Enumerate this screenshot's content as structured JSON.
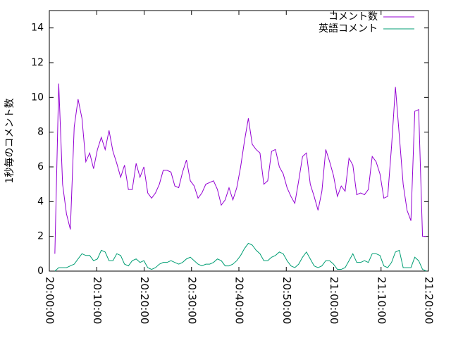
{
  "chart_data": {
    "type": "line",
    "y_label": "1秒毎のコメント数",
    "xlim": [
      "20:00:00",
      "21:20:00"
    ],
    "xticks": [
      "20:00:00",
      "20:10:00",
      "20:20:00",
      "20:30:00",
      "20:40:00",
      "20:50:00",
      "21:00:00",
      "21:10:00",
      "21:20:00"
    ],
    "ylim": [
      0,
      15
    ],
    "yticks": [
      0,
      2,
      4,
      6,
      8,
      10,
      12,
      14
    ],
    "legend": "top-right",
    "x": [
      "20:01:10",
      "20:01:59",
      "20:02:48",
      "20:03:37",
      "20:04:26",
      "20:05:15",
      "20:06:04",
      "20:06:53",
      "20:07:42",
      "20:08:31",
      "20:09:20",
      "20:10:09",
      "20:10:58",
      "20:11:47",
      "20:12:36",
      "20:13:25",
      "20:14:14",
      "20:15:03",
      "20:15:52",
      "20:16:41",
      "20:17:30",
      "20:18:19",
      "20:19:08",
      "20:19:57",
      "20:20:46",
      "20:21:35",
      "20:22:24",
      "20:23:13",
      "20:24:02",
      "20:24:51",
      "20:25:40",
      "20:26:29",
      "20:27:18",
      "20:28:07",
      "20:28:56",
      "20:29:45",
      "20:30:34",
      "20:31:23",
      "20:32:12",
      "20:33:01",
      "20:33:50",
      "20:34:39",
      "20:35:28",
      "20:36:17",
      "20:37:06",
      "20:37:55",
      "20:38:44",
      "20:39:33",
      "20:40:22",
      "20:41:11",
      "20:42:00",
      "20:42:49",
      "20:43:38",
      "20:44:27",
      "20:45:16",
      "20:46:05",
      "20:46:54",
      "20:47:43",
      "20:48:32",
      "20:49:21",
      "20:50:10",
      "20:50:59",
      "20:51:48",
      "20:52:37",
      "20:53:26",
      "20:54:15",
      "20:55:04",
      "20:55:53",
      "20:56:42",
      "20:57:31",
      "20:58:20",
      "20:59:09",
      "20:59:58",
      "21:00:47",
      "21:01:36",
      "21:02:25",
      "21:03:14",
      "21:04:03",
      "21:04:52",
      "21:05:41",
      "21:06:30",
      "21:07:19",
      "21:08:08",
      "21:08:57",
      "21:09:46",
      "21:10:35",
      "21:11:24",
      "21:12:13",
      "21:13:02",
      "21:13:51",
      "21:14:40",
      "21:15:29",
      "21:16:18",
      "21:17:07",
      "21:17:56",
      "21:18:45",
      "21:19:34"
    ],
    "series": [
      {
        "name": "コメント数",
        "color": "#9400d3",
        "values": [
          1.0,
          10.8,
          5.0,
          3.3,
          2.4,
          8.3,
          9.9,
          8.8,
          6.3,
          6.8,
          5.9,
          7.0,
          7.7,
          7.0,
          8.1,
          6.9,
          6.2,
          5.4,
          6.1,
          4.7,
          4.7,
          6.2,
          5.4,
          6.0,
          4.5,
          4.2,
          4.5,
          5.0,
          5.8,
          5.8,
          5.7,
          4.9,
          4.8,
          5.7,
          6.4,
          5.2,
          4.9,
          4.2,
          4.5,
          5.0,
          5.1,
          5.2,
          4.7,
          3.8,
          4.1,
          4.8,
          4.1,
          4.8,
          6.0,
          7.5,
          8.8,
          7.3,
          7.0,
          6.8,
          5.0,
          5.2,
          6.9,
          7.0,
          6.0,
          5.6,
          4.8,
          4.3,
          3.9,
          5.2,
          6.6,
          6.8,
          5.0,
          4.3,
          3.5,
          4.6,
          7.0,
          6.3,
          5.5,
          4.3,
          4.9,
          4.6,
          6.5,
          6.1,
          4.4,
          4.5,
          4.4,
          4.7,
          6.6,
          6.3,
          5.6,
          4.2,
          4.3,
          7.2,
          10.6,
          7.8,
          5.0,
          3.5,
          2.9,
          9.2,
          9.3,
          2.0,
          2.0
        ]
      },
      {
        "name": "英語コメント",
        "color": "#009e73",
        "values": [
          0.0,
          0.2,
          0.2,
          0.2,
          0.3,
          0.4,
          0.7,
          1.0,
          0.9,
          0.9,
          0.6,
          0.7,
          1.2,
          1.1,
          0.6,
          0.6,
          1.0,
          0.9,
          0.4,
          0.3,
          0.6,
          0.7,
          0.5,
          0.6,
          0.2,
          0.1,
          0.2,
          0.4,
          0.5,
          0.5,
          0.6,
          0.5,
          0.4,
          0.5,
          0.7,
          0.8,
          0.6,
          0.4,
          0.3,
          0.4,
          0.4,
          0.5,
          0.7,
          0.6,
          0.3,
          0.3,
          0.4,
          0.6,
          0.9,
          1.3,
          1.6,
          1.5,
          1.2,
          1.0,
          0.6,
          0.6,
          0.8,
          0.9,
          1.1,
          1.0,
          0.6,
          0.3,
          0.2,
          0.4,
          0.8,
          1.1,
          0.7,
          0.3,
          0.2,
          0.3,
          0.6,
          0.6,
          0.4,
          0.1,
          0.1,
          0.2,
          0.6,
          1.0,
          0.5,
          0.5,
          0.6,
          0.5,
          1.0,
          1.0,
          0.9,
          0.3,
          0.2,
          0.5,
          1.1,
          1.2,
          0.2,
          0.2,
          0.2,
          0.8,
          0.6,
          0.1,
          0.0
        ]
      }
    ]
  }
}
